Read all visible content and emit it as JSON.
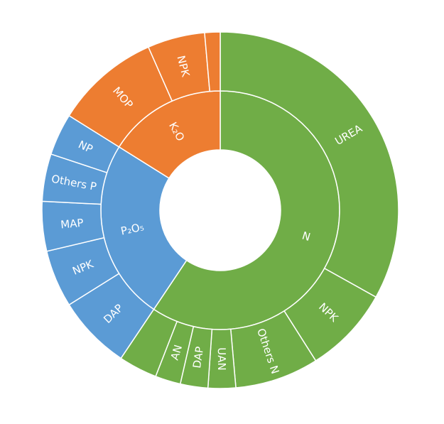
{
  "colors": {
    "N": "#70ad47",
    "P2O5": "#5b9bd5",
    "K2O": "#ed7d31",
    "background": "#ffffff"
  },
  "chart_data": {
    "type": "sunburst",
    "title": "",
    "series": [
      {
        "name": "N",
        "label": "N",
        "value": 59.4,
        "children": [
          {
            "label": "UREA",
            "value": 33.1
          },
          {
            "label": "NPK",
            "value": 7.9
          },
          {
            "label": "Others N",
            "value": 7.6
          },
          {
            "label": "UAN",
            "value": 2.5
          },
          {
            "label": "DAP",
            "value": 2.5
          },
          {
            "label": "AN",
            "value": 2.3
          },
          {
            "label": "",
            "value": 3.5
          }
        ]
      },
      {
        "name": "P2O5",
        "label": "P₂O₅",
        "value": 24.5,
        "children": [
          {
            "label": "DAP",
            "value": 6.7
          },
          {
            "label": "NPK",
            "value": 5.2
          },
          {
            "label": "MAP",
            "value": 4.5
          },
          {
            "label": "Others P",
            "value": 4.3
          },
          {
            "label": "NP",
            "value": 3.8
          }
        ]
      },
      {
        "name": "K2O",
        "label": "K₂O",
        "value": 16.1,
        "children": [
          {
            "label": "MOP",
            "value": 9.5
          },
          {
            "label": "NPK",
            "value": 5.2
          },
          {
            "label": "",
            "value": 1.4
          }
        ]
      }
    ]
  }
}
